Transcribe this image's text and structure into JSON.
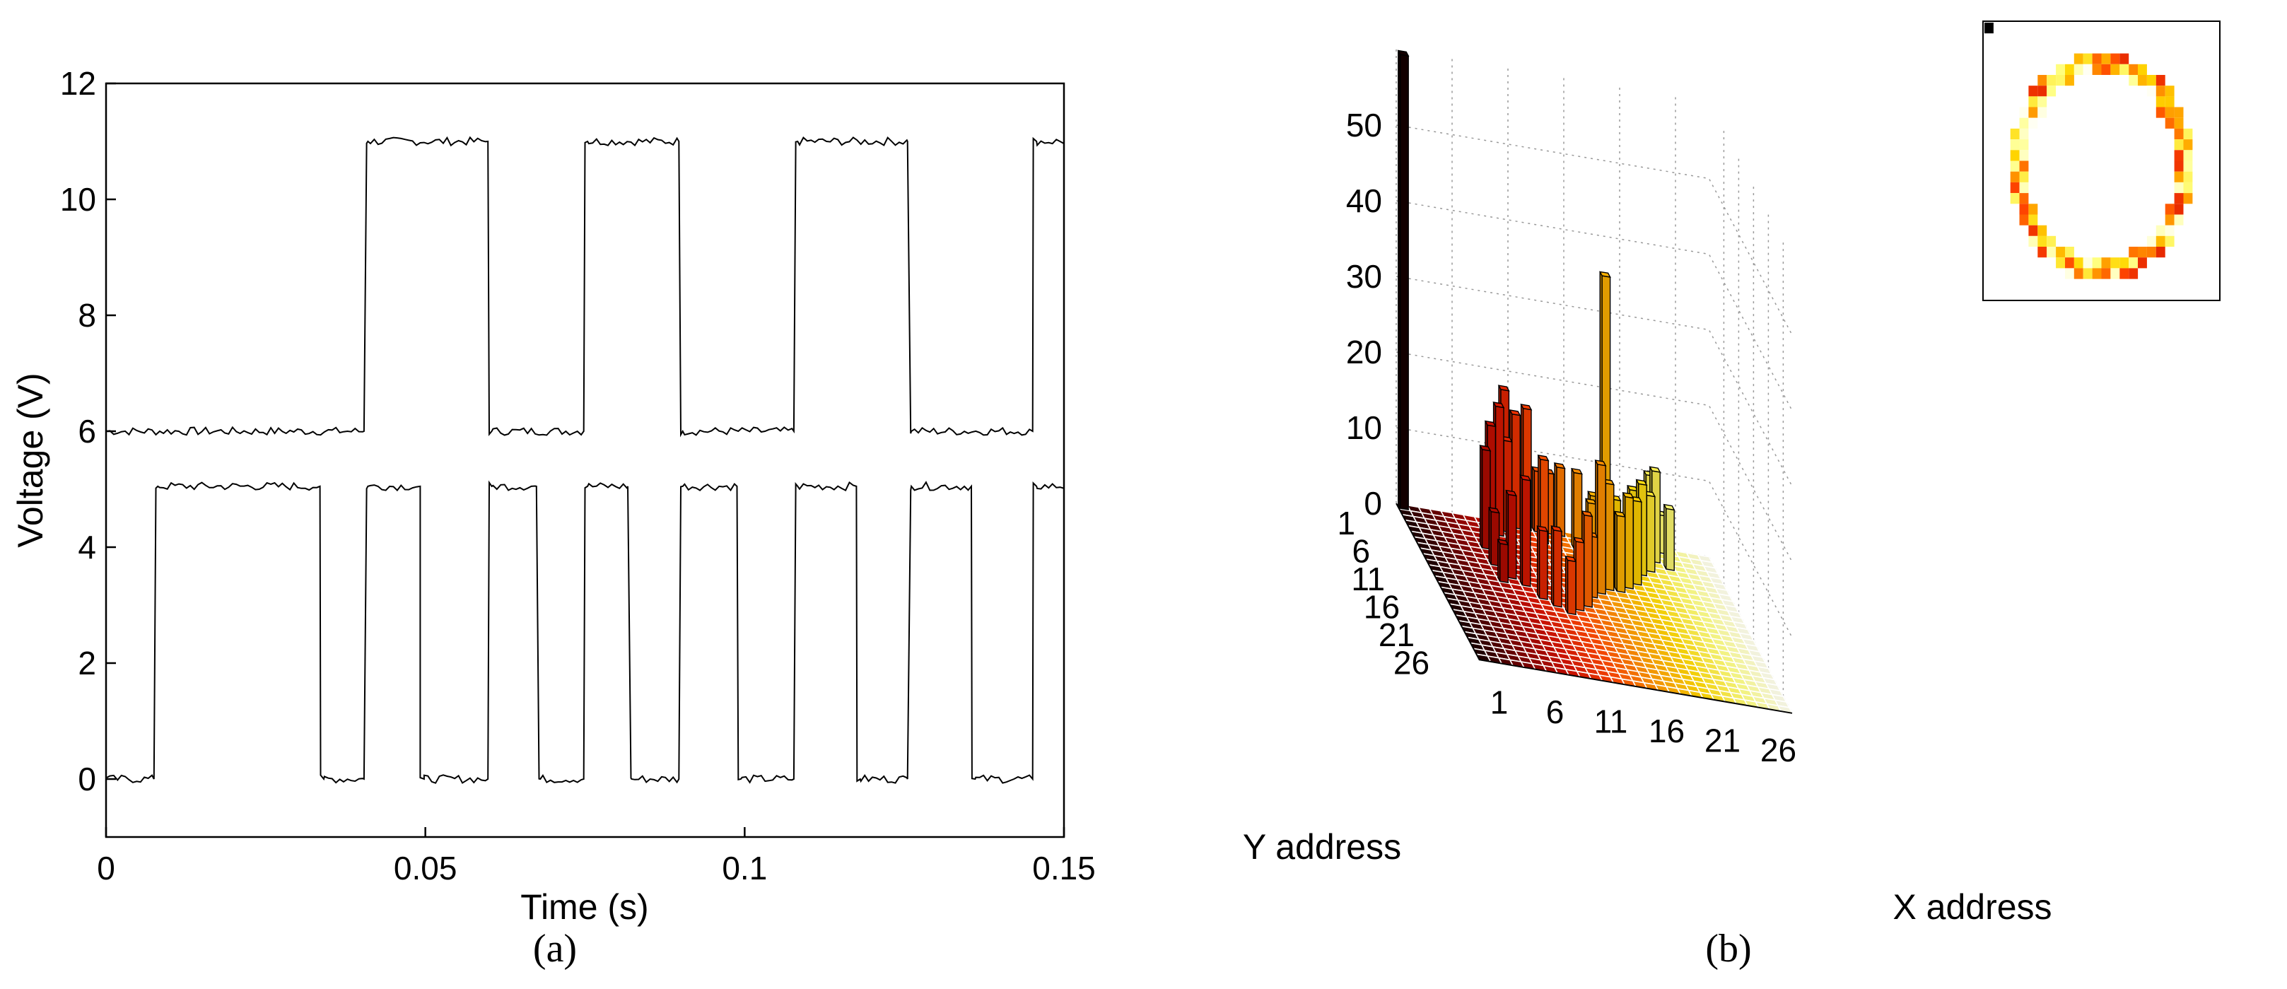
{
  "chart_data": [
    {
      "type": "line",
      "panel_label": "(a)",
      "xlabel": "Time (s)",
      "ylabel": "Voltage (V)",
      "xlim": [
        0,
        0.15
      ],
      "ylim": [
        -1,
        12
      ],
      "x_ticks": [
        "0",
        "0.05",
        "0.1",
        "0.15"
      ],
      "y_ticks": [
        "0",
        "2",
        "4",
        "6",
        "8",
        "10",
        "12"
      ],
      "grid": false,
      "series": [
        {
          "low": 6,
          "high": 11,
          "transitions_s": [
            0.0404,
            0.0598,
            0.0748,
            0.0897,
            0.1077,
            0.1255,
            0.1451
          ],
          "start_state": "low"
        },
        {
          "low": 0,
          "high": 5.05,
          "transitions_s": [
            0.0075,
            0.0335,
            0.0404,
            0.0492,
            0.0598,
            0.0674,
            0.0748,
            0.0817,
            0.0897,
            0.0988,
            0.1077,
            0.1175,
            0.1255,
            0.1355,
            0.1451
          ],
          "start_state": "low"
        }
      ]
    },
    {
      "type": "bar3d",
      "panel_label": "(b)",
      "xlabel": "X address",
      "ylabel": "Y address",
      "x_ticks": [
        "1",
        "6",
        "11",
        "16",
        "21",
        "26"
      ],
      "y_ticks": [
        "1",
        "6",
        "11",
        "16",
        "21",
        "26"
      ],
      "z_ticks": [
        "0",
        "10",
        "20",
        "30",
        "40",
        "50"
      ],
      "zlim": [
        0,
        60
      ],
      "grid_size": 28,
      "colormap": "hot",
      "colormap_stops": [
        "#1a0000",
        "#7a0000",
        "#d01000",
        "#ff4500",
        "#ff9a00",
        "#ffd700",
        "#ffff80",
        "#ffffff"
      ],
      "tall_bar": {
        "x": 1,
        "y": 1,
        "count": 60
      },
      "bars": [
        {
          "x": 7,
          "y": 6,
          "count": 13
        },
        {
          "x": 7,
          "y": 9,
          "count": 7
        },
        {
          "x": 7,
          "y": 12,
          "count": 5
        },
        {
          "x": 8,
          "y": 4,
          "count": 15
        },
        {
          "x": 8,
          "y": 11,
          "count": 11
        },
        {
          "x": 9,
          "y": 3,
          "count": 17
        },
        {
          "x": 9,
          "y": 12,
          "count": 14
        },
        {
          "x": 10,
          "y": 1,
          "count": 18
        },
        {
          "x": 10,
          "y": 2,
          "count": 12
        },
        {
          "x": 10,
          "y": 14,
          "count": 9
        },
        {
          "x": 11,
          "y": 1,
          "count": 15
        },
        {
          "x": 11,
          "y": 15,
          "count": 10
        },
        {
          "x": 12,
          "y": 1,
          "count": 16
        },
        {
          "x": 12,
          "y": 16,
          "count": 7
        },
        {
          "x": 13,
          "y": 1,
          "count": 8
        },
        {
          "x": 13,
          "y": 3,
          "count": 11
        },
        {
          "x": 13,
          "y": 15,
          "count": 9
        },
        {
          "x": 14,
          "y": 1,
          "count": 8
        },
        {
          "x": 14,
          "y": 14,
          "count": 12
        },
        {
          "x": 15,
          "y": 1,
          "count": 9
        },
        {
          "x": 15,
          "y": 12,
          "count": 8
        },
        {
          "x": 16,
          "y": 3,
          "count": 10
        },
        {
          "x": 16,
          "y": 11,
          "count": 17
        },
        {
          "x": 17,
          "y": 4,
          "count": 7
        },
        {
          "x": 17,
          "y": 10,
          "count": 14
        },
        {
          "x": 18,
          "y": 1,
          "count": 6
        },
        {
          "x": 18,
          "y": 5,
          "count": 38
        },
        {
          "x": 18,
          "y": 10,
          "count": 10
        },
        {
          "x": 19,
          "y": 1,
          "count": 5
        },
        {
          "x": 19,
          "y": 7,
          "count": 8
        },
        {
          "x": 19,
          "y": 9,
          "count": 12
        },
        {
          "x": 20,
          "y": 1,
          "count": 6
        },
        {
          "x": 20,
          "y": 7,
          "count": 7
        },
        {
          "x": 20,
          "y": 8,
          "count": 11
        },
        {
          "x": 21,
          "y": 3,
          "count": 9
        },
        {
          "x": 21,
          "y": 6,
          "count": 12
        },
        {
          "x": 22,
          "y": 2,
          "count": 8
        },
        {
          "x": 22,
          "y": 5,
          "count": 10
        },
        {
          "x": 23,
          "y": 1,
          "count": 10
        },
        {
          "x": 23,
          "y": 3,
          "count": 12
        },
        {
          "x": 24,
          "y": 1,
          "count": 5
        },
        {
          "x": 24,
          "y": 4,
          "count": 8
        }
      ],
      "inset": {
        "type": "heatmap",
        "description_ring": true,
        "ring_center": [
          0.5,
          0.52
        ],
        "ring_radius": 0.35,
        "markers": "hot-colored pixels around a ring"
      }
    }
  ]
}
